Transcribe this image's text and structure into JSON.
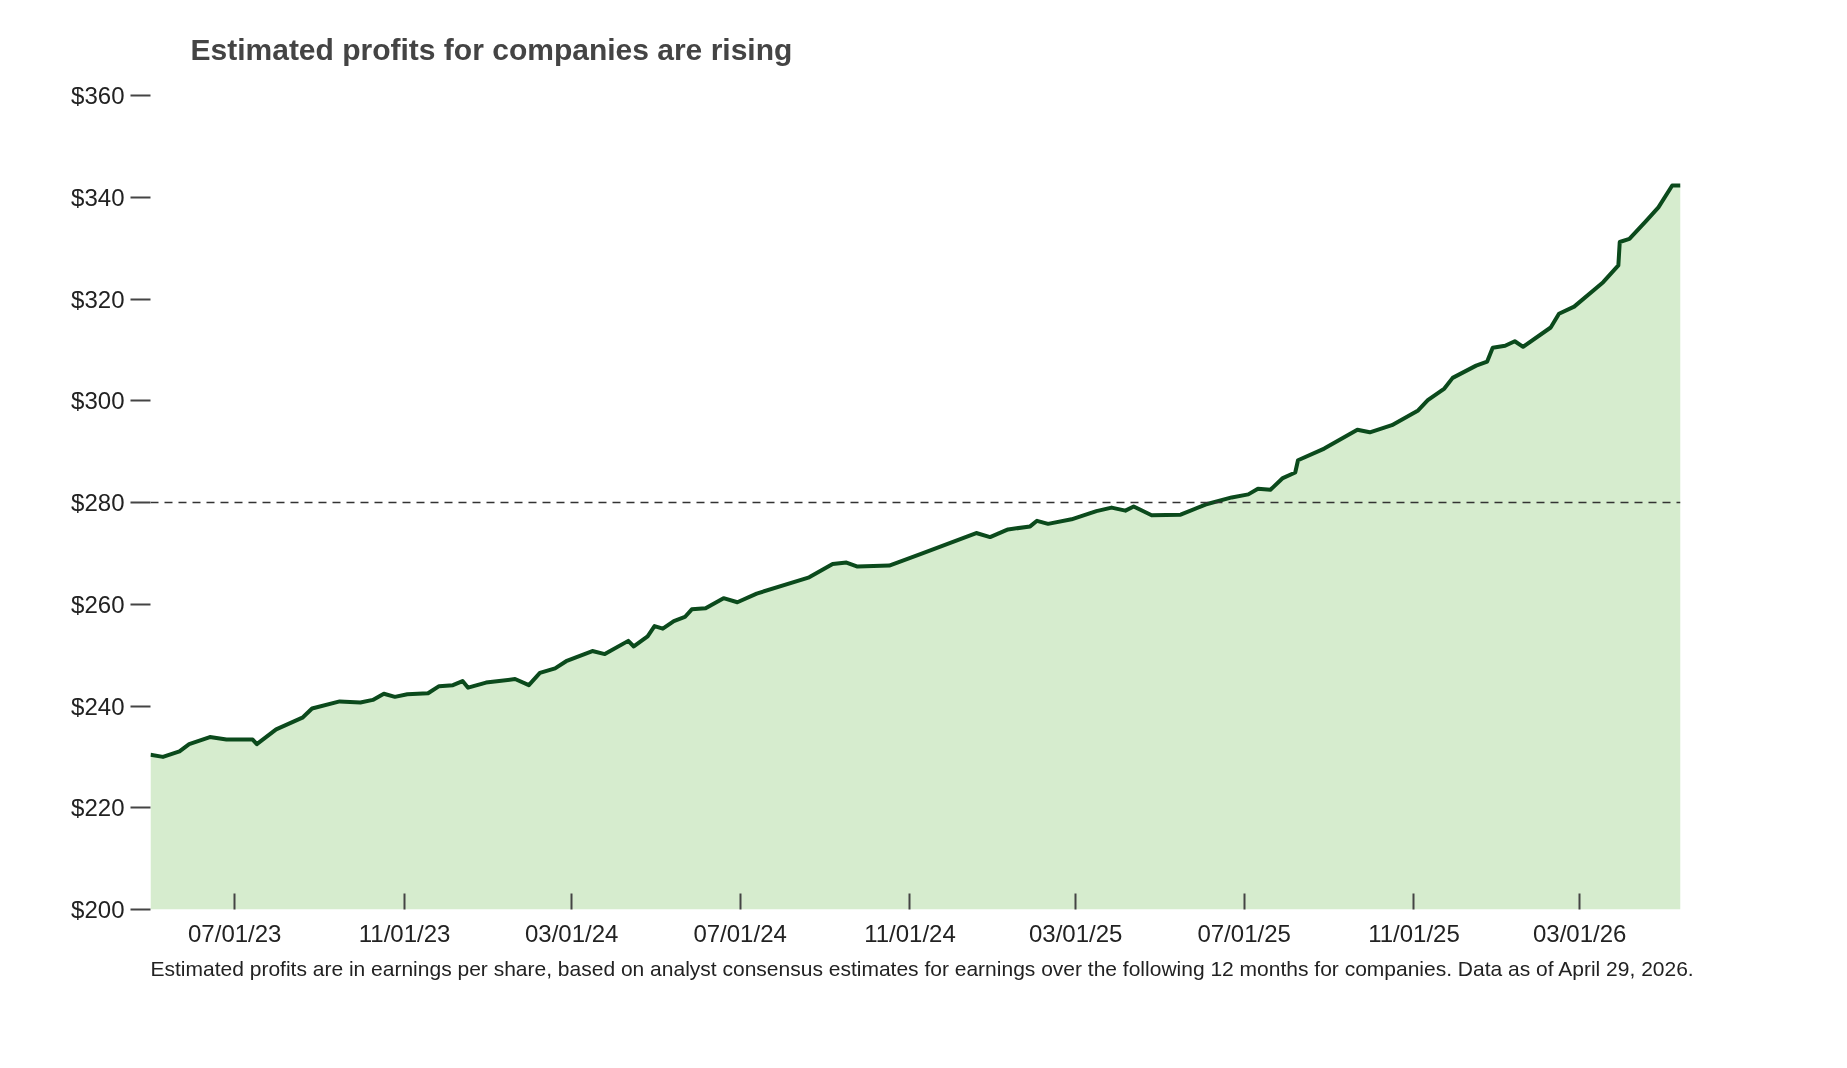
{
  "chart_data": {
    "type": "area",
    "title": "Estimated profits for companies are rising",
    "annotations": [
      "Estimated profits are in earnings per share, based on analyst consensus estimates for earnings over the following 12 months for companies. Data as of April 29, 2026."
    ],
    "x": [
      "2023-05-01",
      "2023-05-10",
      "2023-05-22",
      "2023-05-29",
      "2023-06-13",
      "2023-06-25",
      "2023-07-14",
      "2023-07-17",
      "2023-07-31",
      "2023-08-19",
      "2023-08-26",
      "2023-09-15",
      "2023-09-30",
      "2023-10-09",
      "2023-10-17",
      "2023-10-25",
      "2023-11-03",
      "2023-11-18",
      "2023-11-26",
      "2023-12-06",
      "2023-12-13",
      "2023-12-17",
      "2023-12-30",
      "2024-01-20",
      "2024-01-30",
      "2024-02-07",
      "2024-02-18",
      "2024-02-26",
      "2024-03-16",
      "2024-03-25",
      "2024-04-11",
      "2024-04-15",
      "2024-04-25",
      "2024-04-30",
      "2024-05-06",
      "2024-05-14",
      "2024-05-22",
      "2024-05-27",
      "2024-06-06",
      "2024-06-19",
      "2024-06-29",
      "2024-07-13",
      "2024-08-20",
      "2024-09-06",
      "2024-09-16",
      "2024-09-24",
      "2024-10-17",
      "2024-11-09",
      "2024-12-19",
      "2024-12-29",
      "2025-01-11",
      "2025-01-27",
      "2025-02-01",
      "2025-02-09",
      "2025-02-26",
      "2025-03-16",
      "2025-03-27",
      "2025-04-06",
      "2025-04-12",
      "2025-04-25",
      "2025-05-16",
      "2025-06-03",
      "2025-06-22",
      "2025-07-04",
      "2025-07-11",
      "2025-07-20",
      "2025-07-29",
      "2025-08-07",
      "2025-08-09",
      "2025-08-28",
      "2025-09-21",
      "2025-09-30",
      "2025-10-16",
      "2025-11-04",
      "2025-11-11",
      "2025-11-23",
      "2025-11-29",
      "2025-12-16",
      "2025-12-24",
      "2025-12-28",
      "2026-01-06",
      "2026-01-13",
      "2026-01-19",
      "2026-02-08",
      "2026-02-14",
      "2026-02-25",
      "2026-03-18",
      "2026-03-29",
      "2026-03-30",
      "2026-04-06",
      "2026-04-18",
      "2026-04-27",
      "2026-05-07",
      "2026-05-13"
    ],
    "series": [
      {
        "color": "#0b4a1c",
        "values": [
          230.4,
          230.0,
          231.1,
          232.5,
          233.9,
          233.4,
          233.4,
          232.5,
          235.4,
          237.7,
          239.5,
          240.9,
          240.7,
          241.2,
          242.4,
          241.8,
          242.3,
          242.5,
          243.9,
          244.1,
          244.9,
          243.6,
          244.6,
          245.3,
          244.1,
          246.5,
          247.4,
          248.8,
          250.8,
          250.2,
          252.8,
          251.7,
          253.7,
          255.7,
          255.2,
          256.7,
          257.5,
          259.0,
          259.2,
          261.2,
          260.4,
          262.1,
          265.3,
          267.9,
          268.2,
          267.4,
          267.6,
          269.9,
          274.0,
          273.2,
          274.7,
          275.3,
          276.4,
          275.8,
          276.7,
          278.3,
          279.0,
          278.4,
          279.2,
          277.5,
          277.6,
          279.6,
          281.0,
          281.6,
          282.7,
          282.5,
          284.8,
          285.9,
          288.3,
          290.6,
          294.3,
          293.8,
          295.2,
          298.1,
          300.1,
          302.4,
          304.5,
          306.9,
          307.7,
          310.4,
          310.8,
          311.7,
          310.6,
          314.4,
          317.1,
          318.5,
          323.3,
          326.6,
          331.2,
          331.8,
          335.3,
          338.0,
          342.3,
          342.3
        ]
      }
    ],
    "xlim": [
      "2023-05-01",
      "2026-05-13"
    ],
    "xticks": [
      {
        "value": "2023-07-01",
        "label": "07/01/23"
      },
      {
        "value": "2023-11-01",
        "label": "11/01/23"
      },
      {
        "value": "2024-03-01",
        "label": "03/01/24"
      },
      {
        "value": "2024-07-01",
        "label": "07/01/24"
      },
      {
        "value": "2024-11-01",
        "label": "11/01/24"
      },
      {
        "value": "2025-03-01",
        "label": "03/01/25"
      },
      {
        "value": "2025-07-01",
        "label": "07/01/25"
      },
      {
        "value": "2025-11-01",
        "label": "11/01/25"
      },
      {
        "value": "2026-03-01",
        "label": "03/01/26"
      }
    ],
    "ylim": [
      200,
      360
    ],
    "yticks": [
      {
        "value": 200,
        "label": "$200"
      },
      {
        "value": 220,
        "label": "$220"
      },
      {
        "value": 240,
        "label": "$240"
      },
      {
        "value": 260,
        "label": "$260"
      },
      {
        "value": 280,
        "label": "$280"
      },
      {
        "value": 300,
        "label": "$300"
      },
      {
        "value": 320,
        "label": "$320"
      },
      {
        "value": 340,
        "label": "$340"
      },
      {
        "value": 360,
        "label": "$360"
      }
    ],
    "ref_lines": [
      {
        "axis": "y",
        "value": 280,
        "color": "#333333",
        "line_style": "dashed"
      }
    ],
    "grid": false
  }
}
